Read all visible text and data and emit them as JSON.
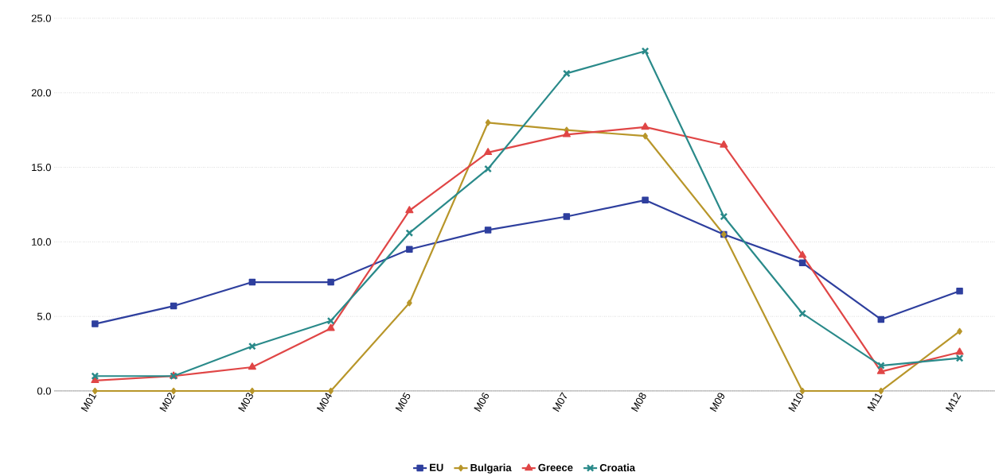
{
  "chart_data": {
    "type": "line",
    "categories": [
      "M01",
      "M02",
      "M03",
      "M04",
      "M05",
      "M06",
      "M07",
      "M08",
      "M09",
      "M10",
      "M11",
      "M12"
    ],
    "series": [
      {
        "name": "EU",
        "color": "#2e3f9e",
        "marker": "square",
        "values": [
          4.5,
          5.7,
          7.3,
          7.3,
          9.5,
          10.8,
          11.7,
          12.8,
          10.5,
          8.6,
          4.8,
          6.7
        ]
      },
      {
        "name": "Bulgaria",
        "color": "#b8962a",
        "marker": "diamond",
        "values": [
          0,
          0,
          0,
          0,
          5.9,
          18.0,
          17.5,
          17.1,
          10.5,
          0,
          0,
          4.0
        ]
      },
      {
        "name": "Greece",
        "color": "#e04646",
        "marker": "triangle",
        "values": [
          0.7,
          1.0,
          1.6,
          4.2,
          12.1,
          16.0,
          17.2,
          17.7,
          16.5,
          9.1,
          1.3,
          2.6
        ]
      },
      {
        "name": "Croatia",
        "color": "#2a8a8a",
        "marker": "cross",
        "values": [
          1.0,
          1.0,
          3.0,
          4.7,
          10.6,
          14.9,
          21.3,
          22.8,
          11.7,
          5.2,
          1.7,
          2.2
        ]
      }
    ],
    "ylim": [
      0,
      25
    ],
    "yticks": [
      {
        "value": 0,
        "label": "0.0"
      },
      {
        "value": 5,
        "label": "5.0"
      },
      {
        "value": 10,
        "label": "10.0"
      },
      {
        "value": 15,
        "label": "15.0"
      },
      {
        "value": 20,
        "label": "20.0"
      },
      {
        "value": 25,
        "label": "25.0"
      }
    ],
    "grid": "y",
    "legend": "bottom",
    "line_style": "solid"
  }
}
